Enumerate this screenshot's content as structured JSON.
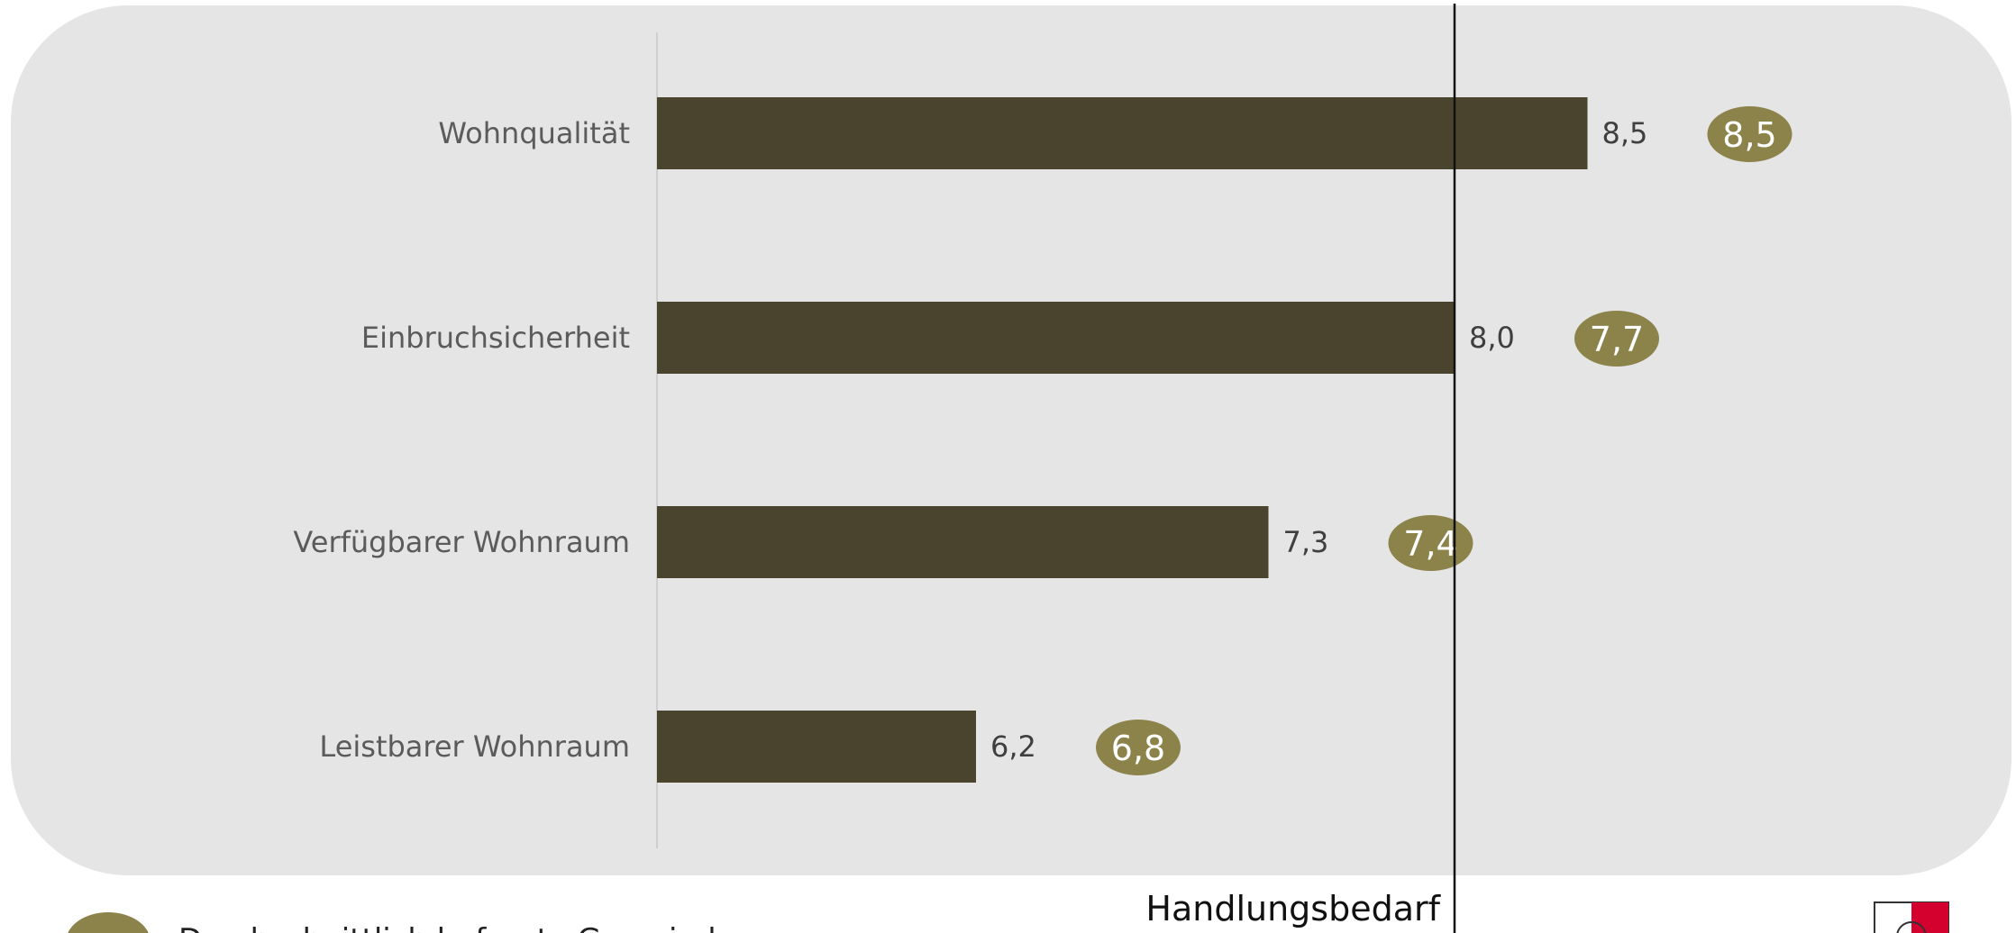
{
  "colors": {
    "panel": "#e4e5e4",
    "bar": "#4a442e",
    "bubble": "#8c834a",
    "reference_line": "#111111",
    "logo_red": "#d4002d"
  },
  "legend": {
    "label": "Durchschnittlich befragte Gemeinde",
    "icon": "olive-oval-marker"
  },
  "logo": {
    "icon": "red-white-logo"
  },
  "chart_data": {
    "type": "bar",
    "orientation": "horizontal",
    "categories": [
      "Wohnqualität",
      "Einbruchsicherheit",
      "Verfügbarer Wohnraum",
      "Leistbarer Wohnraum"
    ],
    "series": [
      {
        "values": [
          8.5,
          8.0,
          7.3,
          6.2
        ],
        "labels": [
          "8,5",
          "8,0",
          "7,3",
          "6,2"
        ]
      },
      {
        "name": "Durchschnittlich befragte Gemeinde",
        "marker": "oval",
        "values": [
          8.5,
          7.7,
          7.4,
          6.8
        ],
        "labels": [
          "8,5",
          "7,7",
          "7,4",
          "6,8"
        ]
      }
    ],
    "reference_line": {
      "value": 8.0,
      "label": "Handlungsbedarf"
    },
    "xlim": [
      5,
      10
    ],
    "grid": false,
    "legend_position": "bottom-left"
  }
}
